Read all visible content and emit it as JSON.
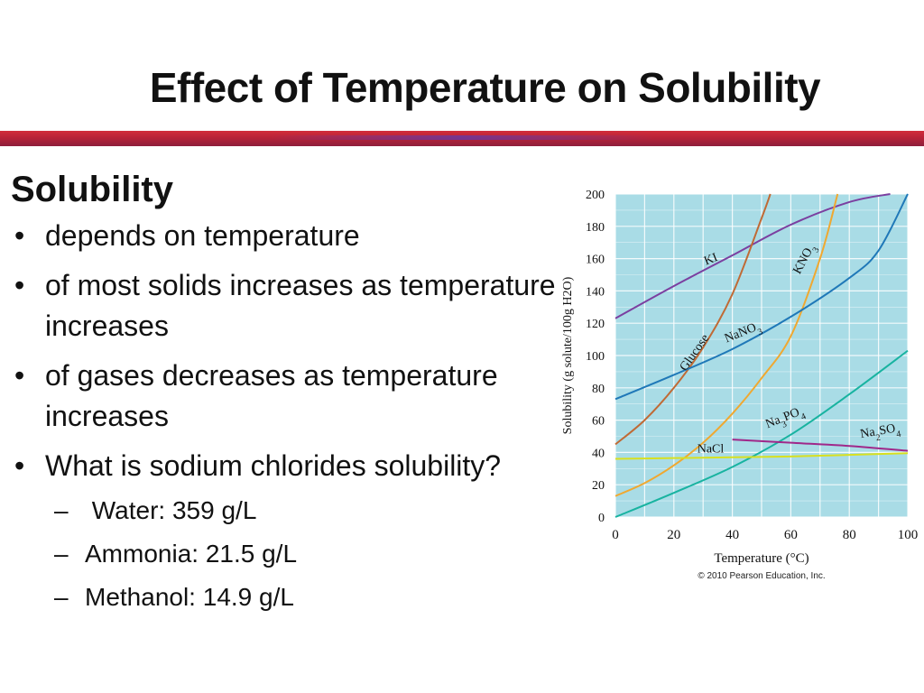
{
  "title": "Effect of Temperature on Solubility",
  "heading": "Solubility",
  "bullets": [
    "depends on temperature",
    "of most solids increases as temperature increases",
    "of gases decreases as temperature increases",
    "What is sodium chlorides solubility?"
  ],
  "sub_bullets": [
    " Water: 359 g/L",
    "Ammonia: 21.5 g/L",
    "Methanol: 14.9 g/L"
  ],
  "bullet_symbol": "•",
  "dash_symbol": "–",
  "colors": {
    "title_bar": "#c0283a",
    "plot_bg": "#a9dce6",
    "grid": "#ffffff"
  },
  "chart_data": {
    "type": "line",
    "title": "",
    "xlabel": "Temperature (°C)",
    "ylabel": "Solubility (g solute/100g H2O)",
    "xlim": [
      0,
      100
    ],
    "ylim": [
      0,
      200
    ],
    "xticks": [
      0,
      20,
      40,
      60,
      80,
      100
    ],
    "yticks": [
      0,
      20,
      40,
      60,
      80,
      100,
      120,
      140,
      160,
      180,
      200
    ],
    "copyright": "© 2010 Pearson Education, Inc.",
    "grid": true,
    "series": [
      {
        "name": "KI",
        "color": "#7b3fa0",
        "x": [
          0,
          20,
          40,
          60,
          80,
          94
        ],
        "y": [
          123,
          143,
          162,
          181,
          195,
          200
        ]
      },
      {
        "name": "Glucose",
        "color": "#c06a35",
        "x": [
          0,
          10,
          20,
          30,
          40,
          50,
          53
        ],
        "y": [
          45,
          60,
          80,
          105,
          138,
          185,
          200
        ]
      },
      {
        "name": "KNO3",
        "color": "#f0a830",
        "x": [
          0,
          10,
          20,
          30,
          40,
          50,
          60,
          70,
          76
        ],
        "y": [
          13,
          21,
          32,
          46,
          64,
          86,
          112,
          160,
          200
        ]
      },
      {
        "name": "NaNO3",
        "color": "#1f78b8",
        "x": [
          0,
          20,
          40,
          60,
          80,
          90,
          100
        ],
        "y": [
          73,
          88,
          104,
          124,
          148,
          165,
          200
        ]
      },
      {
        "name": "Na3PO4",
        "color": "#18b3a0",
        "x": [
          0,
          20,
          40,
          60,
          80,
          100
        ],
        "y": [
          0,
          15,
          31,
          51,
          76,
          103
        ]
      },
      {
        "name": "Na2SO4",
        "color": "#a0288a",
        "x": [
          40,
          60,
          80,
          100
        ],
        "y": [
          48,
          46,
          44,
          41
        ]
      },
      {
        "name": "NaCl",
        "color": "#d8e020",
        "x": [
          0,
          20,
          40,
          60,
          80,
          100
        ],
        "y": [
          36,
          36.5,
          37,
          37.5,
          38.5,
          39.5
        ]
      }
    ],
    "labels": [
      {
        "series": "KI",
        "text": "KI"
      },
      {
        "series": "Glucose",
        "text": "Glucose"
      },
      {
        "series": "KNO3",
        "text": "KNO3"
      },
      {
        "series": "NaNO3",
        "text": "NaNO3"
      },
      {
        "series": "Na3PO4",
        "text": "Na3PO4"
      },
      {
        "series": "Na2SO4",
        "text": "Na2SO4"
      },
      {
        "series": "NaCl",
        "text": "NaCl"
      }
    ]
  }
}
